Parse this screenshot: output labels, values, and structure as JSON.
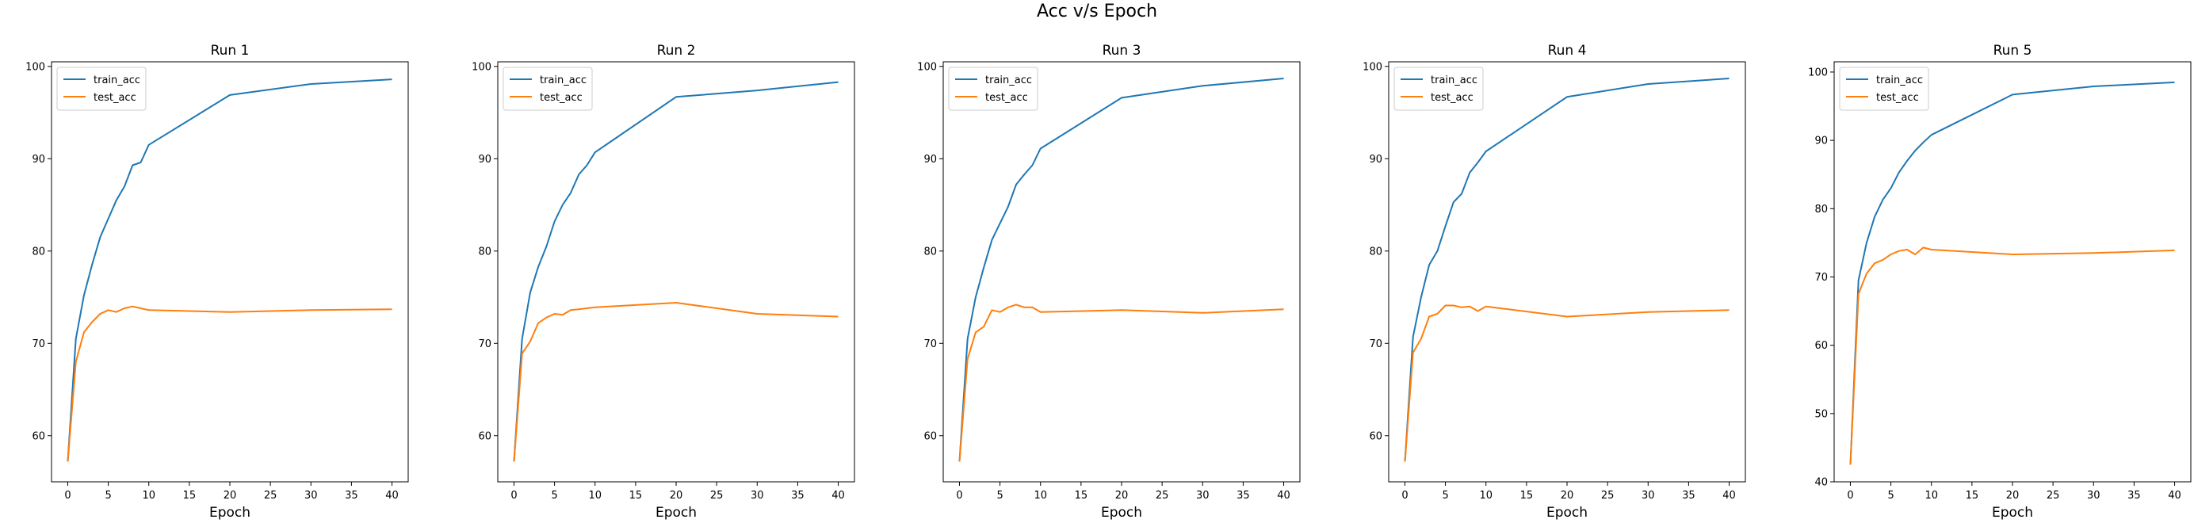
{
  "figure": {
    "title": "Acc v/s Epoch"
  },
  "colors": {
    "train_acc": "#1f77b4",
    "test_acc": "#ff7f0e"
  },
  "chart_data": [
    {
      "type": "line",
      "title": "Run 1",
      "xlabel": "Epoch",
      "ylabel": "",
      "xlim": [
        -2,
        42
      ],
      "ylim": [
        55,
        100.5
      ],
      "xticks": [
        0,
        5,
        10,
        15,
        20,
        25,
        30,
        35,
        40
      ],
      "yticks": [
        60,
        70,
        80,
        90,
        100
      ],
      "legend": "upper-left",
      "series": [
        {
          "name": "train_acc",
          "x": [
            0,
            1,
            2,
            3,
            4,
            5,
            6,
            7,
            8,
            9,
            10,
            20,
            30,
            40
          ],
          "values": [
            57.2,
            70.5,
            75.2,
            78.5,
            81.5,
            83.5,
            85.5,
            87.0,
            89.3,
            89.6,
            91.5,
            96.9,
            98.1,
            98.6
          ]
        },
        {
          "name": "test_acc",
          "x": [
            0,
            1,
            2,
            3,
            4,
            5,
            6,
            7,
            8,
            9,
            10,
            20,
            30,
            40
          ],
          "values": [
            57.2,
            68.0,
            71.2,
            72.3,
            73.2,
            73.6,
            73.4,
            73.8,
            74.0,
            73.8,
            73.6,
            73.4,
            73.6,
            73.7
          ]
        }
      ]
    },
    {
      "type": "line",
      "title": "Run 2",
      "xlabel": "Epoch",
      "ylabel": "",
      "xlim": [
        -2,
        42
      ],
      "ylim": [
        55,
        100.5
      ],
      "xticks": [
        0,
        5,
        10,
        15,
        20,
        25,
        30,
        35,
        40
      ],
      "yticks": [
        60,
        70,
        80,
        90,
        100
      ],
      "legend": "upper-left",
      "series": [
        {
          "name": "train_acc",
          "x": [
            0,
            1,
            2,
            3,
            4,
            5,
            6,
            7,
            8,
            9,
            10,
            20,
            30,
            40
          ],
          "values": [
            57.2,
            70.5,
            75.5,
            78.3,
            80.5,
            83.2,
            85.0,
            86.3,
            88.3,
            89.3,
            90.7,
            96.7,
            97.4,
            98.3
          ]
        },
        {
          "name": "test_acc",
          "x": [
            0,
            1,
            2,
            3,
            4,
            5,
            6,
            7,
            8,
            9,
            10,
            20,
            30,
            40
          ],
          "values": [
            57.2,
            68.9,
            70.2,
            72.2,
            72.8,
            73.2,
            73.1,
            73.6,
            73.7,
            73.8,
            73.9,
            74.4,
            73.2,
            72.9
          ]
        }
      ]
    },
    {
      "type": "line",
      "title": "Run 3",
      "xlabel": "Epoch",
      "ylabel": "",
      "xlim": [
        -2,
        42
      ],
      "ylim": [
        55,
        100.5
      ],
      "xticks": [
        0,
        5,
        10,
        15,
        20,
        25,
        30,
        35,
        40
      ],
      "yticks": [
        60,
        70,
        80,
        90,
        100
      ],
      "legend": "upper-left",
      "series": [
        {
          "name": "train_acc",
          "x": [
            0,
            1,
            2,
            3,
            4,
            5,
            6,
            7,
            8,
            9,
            10,
            20,
            30,
            40
          ],
          "values": [
            57.2,
            70.5,
            75.0,
            78.2,
            81.2,
            83.0,
            84.8,
            87.2,
            88.3,
            89.3,
            91.1,
            96.6,
            97.9,
            98.7
          ]
        },
        {
          "name": "test_acc",
          "x": [
            0,
            1,
            2,
            3,
            4,
            5,
            6,
            7,
            8,
            9,
            10,
            20,
            30,
            40
          ],
          "values": [
            57.2,
            68.3,
            71.2,
            71.8,
            73.6,
            73.4,
            73.9,
            74.2,
            73.9,
            73.9,
            73.4,
            73.6,
            73.3,
            73.7
          ]
        }
      ]
    },
    {
      "type": "line",
      "title": "Run 4",
      "xlabel": "Epoch",
      "ylabel": "",
      "xlim": [
        -2,
        42
      ],
      "ylim": [
        55,
        100.5
      ],
      "xticks": [
        0,
        5,
        10,
        15,
        20,
        25,
        30,
        35,
        40
      ],
      "yticks": [
        60,
        70,
        80,
        90,
        100
      ],
      "legend": "upper-left",
      "series": [
        {
          "name": "train_acc",
          "x": [
            0,
            1,
            2,
            3,
            4,
            5,
            6,
            7,
            8,
            9,
            10,
            20,
            30,
            40
          ],
          "values": [
            57.2,
            70.7,
            75.0,
            78.5,
            80.0,
            82.7,
            85.3,
            86.2,
            88.5,
            89.6,
            90.8,
            96.7,
            98.1,
            98.7
          ]
        },
        {
          "name": "test_acc",
          "x": [
            0,
            1,
            2,
            3,
            4,
            5,
            6,
            7,
            8,
            9,
            10,
            20,
            30,
            40
          ],
          "values": [
            57.2,
            69.0,
            70.5,
            72.9,
            73.2,
            74.1,
            74.1,
            73.9,
            74.0,
            73.5,
            74.0,
            72.9,
            73.4,
            73.6
          ]
        }
      ]
    },
    {
      "type": "line",
      "title": "Run 5",
      "xlabel": "Epoch",
      "ylabel": "",
      "xlim": [
        -2,
        42
      ],
      "ylim": [
        40,
        101.5
      ],
      "xticks": [
        0,
        5,
        10,
        15,
        20,
        25,
        30,
        35,
        40
      ],
      "yticks": [
        40,
        50,
        60,
        70,
        80,
        90,
        100
      ],
      "legend": "upper-left",
      "series": [
        {
          "name": "train_acc",
          "x": [
            0,
            1,
            2,
            3,
            4,
            5,
            6,
            7,
            8,
            9,
            10,
            20,
            30,
            40
          ],
          "values": [
            42.5,
            69.5,
            75.0,
            78.8,
            81.3,
            83.0,
            85.3,
            87.0,
            88.5,
            89.7,
            90.8,
            96.7,
            97.9,
            98.5
          ]
        },
        {
          "name": "test_acc",
          "x": [
            0,
            1,
            2,
            3,
            4,
            5,
            6,
            7,
            8,
            9,
            10,
            20,
            30,
            40
          ],
          "values": [
            42.5,
            67.5,
            70.5,
            72.0,
            72.5,
            73.3,
            73.8,
            74.0,
            73.3,
            74.3,
            74.0,
            73.3,
            73.5,
            73.9
          ]
        }
      ]
    }
  ]
}
